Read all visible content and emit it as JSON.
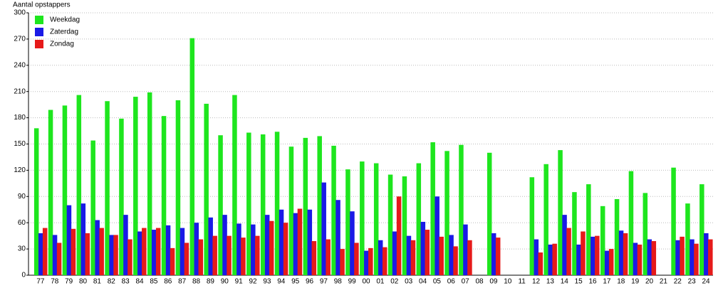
{
  "chart_data": {
    "type": "bar",
    "y_label": "Aantal opstappers",
    "categories": [
      "77",
      "78",
      "79",
      "80",
      "81",
      "82",
      "83",
      "84",
      "85",
      "86",
      "87",
      "88",
      "89",
      "90",
      "91",
      "92",
      "93",
      "94",
      "95",
      "96",
      "97",
      "98",
      "99",
      "00",
      "01",
      "02",
      "03",
      "04",
      "05",
      "06",
      "07",
      "08",
      "09",
      "10",
      "11",
      "12",
      "13",
      "14",
      "15",
      "16",
      "17",
      "18",
      "19",
      "20",
      "21",
      "22",
      "23",
      "24"
    ],
    "series": [
      {
        "name": "Weekdag",
        "color": "#1ee61e",
        "values": [
          168,
          189,
          194,
          206,
          154,
          199,
          179,
          204,
          209,
          182,
          200,
          271,
          196,
          160,
          206,
          163,
          161,
          164,
          147,
          157,
          159,
          148,
          121,
          130,
          128,
          115,
          113,
          128,
          152,
          142,
          149,
          null,
          140,
          null,
          null,
          112,
          127,
          143,
          95,
          104,
          79,
          87,
          119,
          94,
          null,
          123,
          82,
          104
        ]
      },
      {
        "name": "Zaterdag",
        "color": "#1a1ae6",
        "values": [
          48,
          46,
          80,
          82,
          63,
          46,
          69,
          50,
          52,
          57,
          54,
          60,
          66,
          69,
          59,
          58,
          69,
          75,
          71,
          75,
          106,
          86,
          73,
          28,
          40,
          50,
          45,
          61,
          90,
          46,
          58,
          null,
          48,
          null,
          null,
          41,
          35,
          69,
          35,
          44,
          28,
          51,
          37,
          41,
          null,
          40,
          41,
          48
        ]
      },
      {
        "name": "Zondag",
        "color": "#e61a1a",
        "values": [
          54,
          37,
          53,
          48,
          54,
          46,
          41,
          54,
          54,
          31,
          37,
          41,
          45,
          45,
          43,
          45,
          62,
          60,
          76,
          39,
          41,
          30,
          37,
          31,
          32,
          90,
          40,
          52,
          44,
          33,
          40,
          null,
          43,
          null,
          null,
          26,
          36,
          54,
          50,
          45,
          30,
          48,
          35,
          39,
          null,
          44,
          36,
          41
        ]
      }
    ],
    "ylim": [
      0,
      300
    ],
    "yticks": [
      0,
      30,
      60,
      90,
      120,
      150,
      180,
      210,
      240,
      270,
      300
    ],
    "grid": true,
    "legend": "top-left"
  }
}
